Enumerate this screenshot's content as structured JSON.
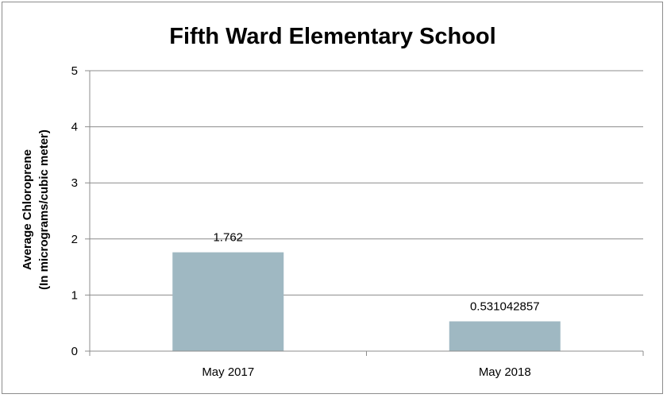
{
  "chart_data": {
    "type": "bar",
    "title": "Fifth Ward Elementary School",
    "ylabel_line1": "Average Chloroprene",
    "ylabel_line2": "(In micrograms/cubic meter)",
    "xlabel": "",
    "categories": [
      "May 2017",
      "May 2018"
    ],
    "values": [
      1.762,
      0.531042857
    ],
    "value_labels": [
      "1.762",
      "0.531042857"
    ],
    "ylim": [
      0,
      5
    ],
    "yticks": [
      0,
      1,
      2,
      3,
      4,
      5
    ],
    "grid": true,
    "bar_color": "#9fb8c2"
  }
}
